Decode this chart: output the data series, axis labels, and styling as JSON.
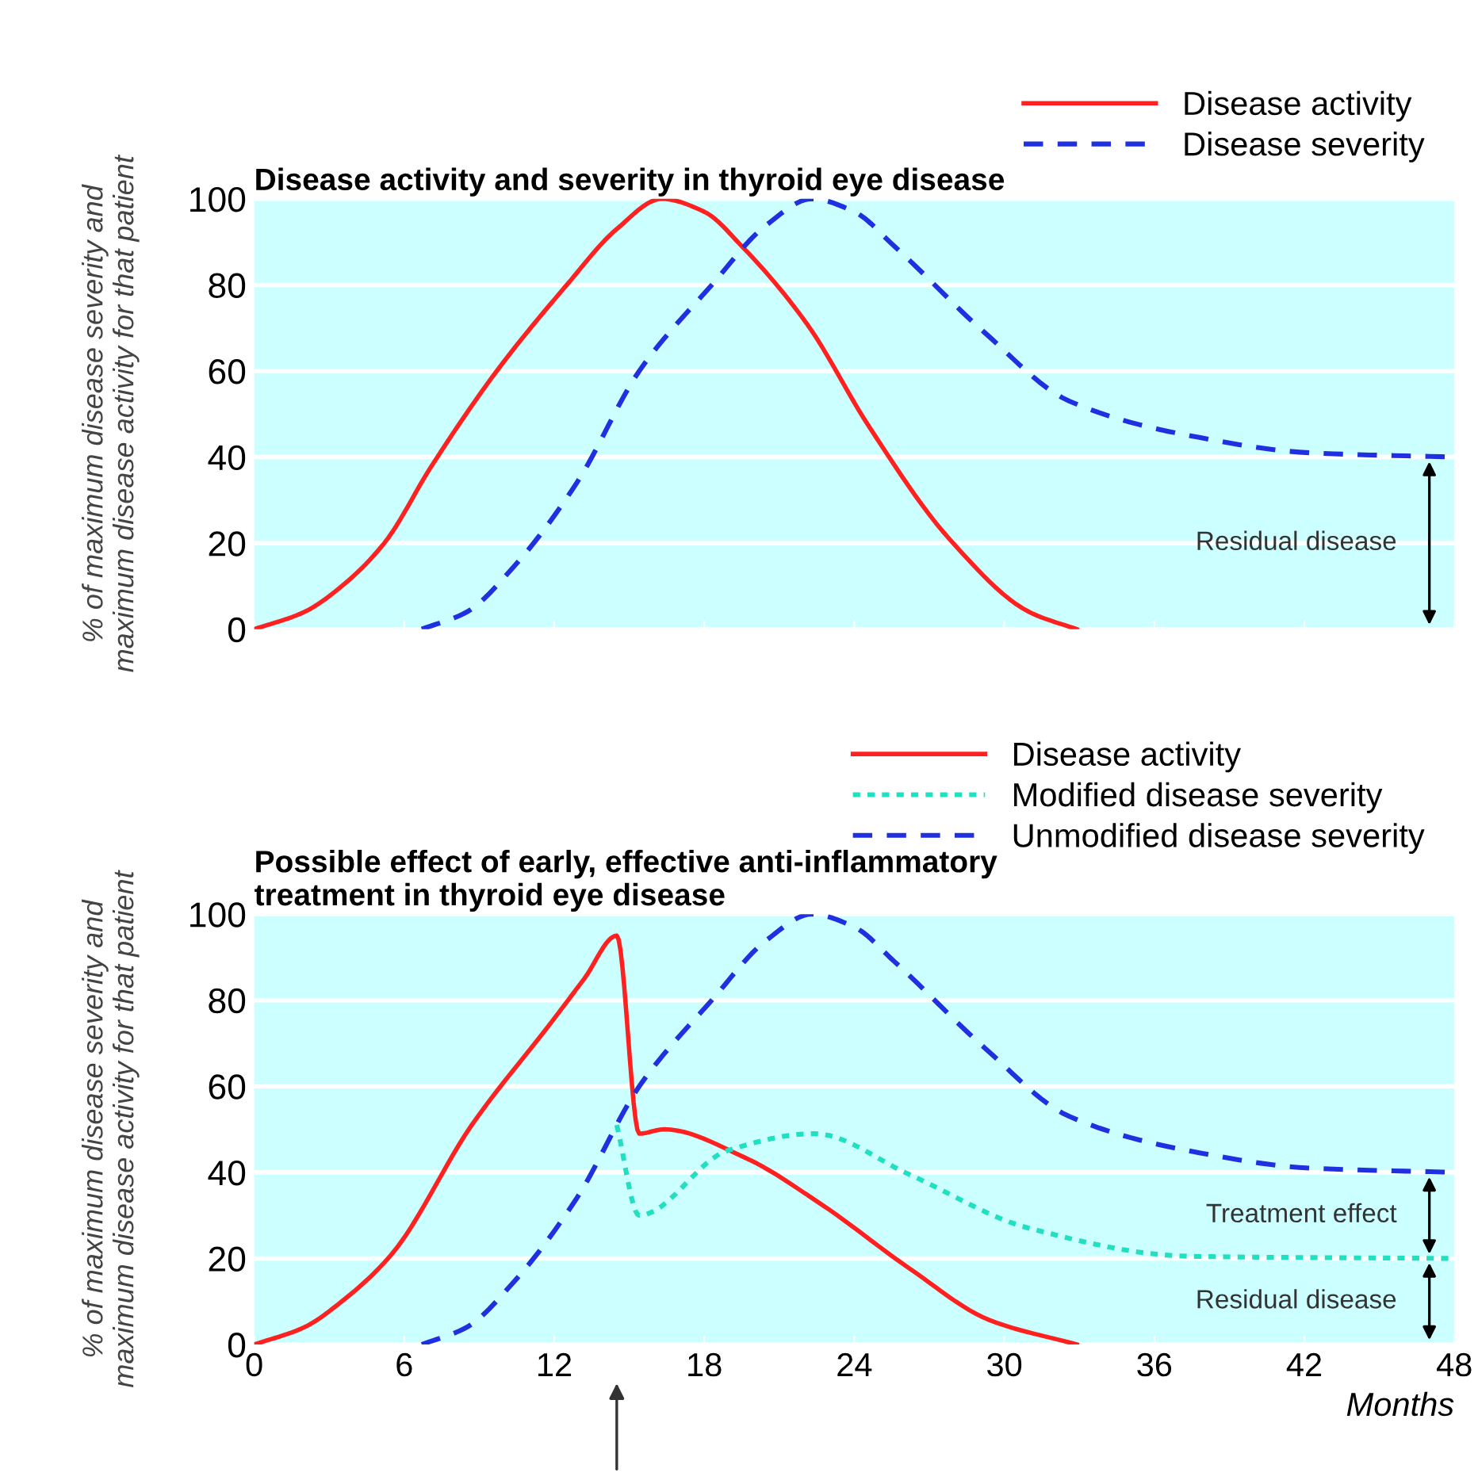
{
  "chart_data": [
    {
      "type": "line",
      "title": "Disease activity and severity in thyroid eye disease",
      "ylabel": "% of maximum disease severity and\nmaximum disease activity for that patient",
      "xlim": [
        0,
        48
      ],
      "xticks": [
        0,
        6,
        12,
        18,
        24,
        30,
        36,
        42,
        48
      ],
      "ylim": [
        0,
        100
      ],
      "yticks": [
        0,
        20,
        40,
        60,
        80,
        100
      ],
      "tick_labels": "y",
      "grid": "y",
      "legend": "top right",
      "series": [
        {
          "name": "Disease activity",
          "color": "#ff2020",
          "line_style": "solid",
          "x": [
            0,
            2,
            3.5,
            5.2,
            7.1,
            9.7,
            12.5,
            14.5,
            16.3,
            18,
            19.5,
            22.1,
            24.6,
            27.8,
            31,
            32.9
          ],
          "values": [
            0,
            4,
            10,
            20,
            38,
            60,
            80,
            93,
            100,
            97,
            89,
            71,
            47,
            21,
            4,
            0
          ]
        },
        {
          "name": "Disease severity",
          "color": "#2030e0",
          "line_style": "dashed",
          "x": [
            6.7,
            8.5,
            10.3,
            12.9,
            15.4,
            18.3,
            20.5,
            22.3,
            24,
            25.6,
            29.2,
            32.6,
            37.4,
            42.2,
            48
          ],
          "values": [
            0,
            4,
            14,
            34,
            60,
            80,
            94,
            100,
            97,
            89,
            69,
            53,
            45,
            41,
            40
          ]
        }
      ],
      "annotations": [
        "Residual disease"
      ]
    },
    {
      "type": "line",
      "title": "Possible effect of early, effective anti-inflammatory\ntreatment in thyroid eye disease",
      "ylabel": "% of maximum disease severity and\nmaximum disease activity for that patient",
      "xlabel": "Months",
      "xlim": [
        0,
        48
      ],
      "xticks": [
        0,
        6,
        12,
        18,
        24,
        30,
        36,
        42,
        48
      ],
      "ylim": [
        0,
        100
      ],
      "yticks": [
        0,
        20,
        40,
        60,
        80,
        100
      ],
      "grid": "y",
      "legend": "top right",
      "series": [
        {
          "name": "Disease activity",
          "color": "#ff2020",
          "line_style": "solid",
          "x": [
            0,
            2,
            3.5,
            5.5,
            8.7,
            11.9,
            13.2,
            14.5,
            15.4,
            16.4,
            19.6,
            22.7,
            26.2,
            29.4,
            32.9
          ],
          "values": [
            0,
            4,
            10,
            21,
            51,
            75,
            85,
            95,
            49,
            50,
            43.5,
            32.5,
            17.7,
            5.7,
            0
          ]
        },
        {
          "name": "Modified disease severity",
          "color": "#20e0c0",
          "line_style": "dotted",
          "x": [
            14.5,
            15.4,
            18.9,
            22.4,
            26.2,
            31,
            37.4,
            48
          ],
          "values": [
            51,
            30,
            45,
            49,
            39.5,
            27,
            20.5,
            20
          ]
        },
        {
          "name": "Unmodified disease severity",
          "color": "#2030e0",
          "line_style": "dashed",
          "x": [
            6.7,
            8.5,
            10.3,
            12.9,
            15.4,
            18.3,
            20.5,
            22.3,
            24,
            25.6,
            29.2,
            32.6,
            37.4,
            42.2,
            48
          ],
          "values": [
            0,
            4,
            14,
            34,
            60,
            80,
            94,
            100,
            97,
            89,
            69,
            53,
            45,
            41,
            40
          ]
        }
      ],
      "annotations": [
        "Treatment effect",
        "Residual disease"
      ]
    }
  ]
}
